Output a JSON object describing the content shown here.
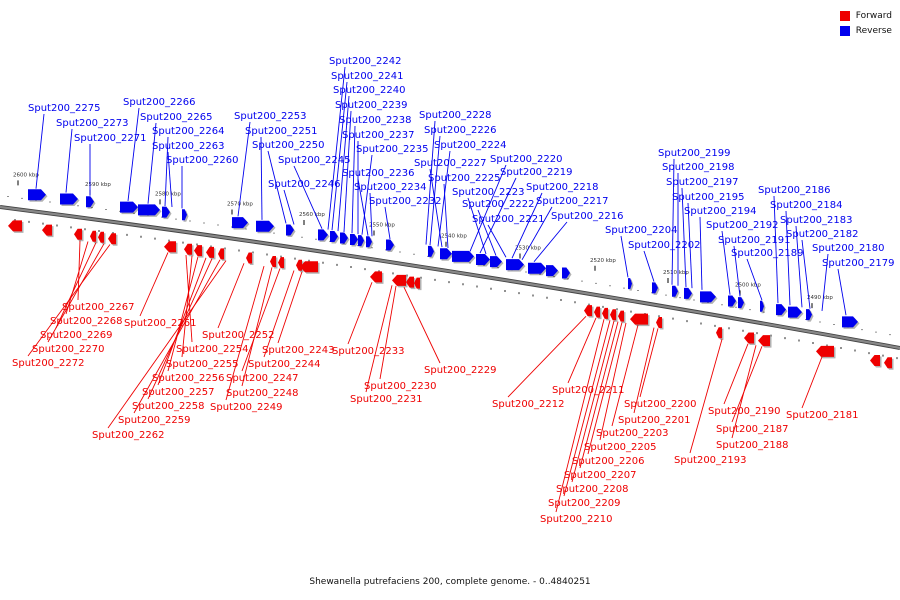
{
  "colors": {
    "forward": "#ee0000",
    "reverse": "#0000ee",
    "backbone": "#888888"
  },
  "legend": [
    {
      "label": "Forward",
      "color": "#ee0000"
    },
    {
      "label": "Reverse",
      "color": "#0000ee"
    }
  ],
  "caption": "Shewanella putrefaciens 200, complete genome. - 0..4840251",
  "ticks": [
    "2600 kbp",
    "2590 kbp",
    "2580 kbp",
    "2570 kbp",
    "2560 kbp",
    "2550 kbp",
    "2540 kbp",
    "2530 kbp",
    "2520 kbp",
    "2510 kbp",
    "2500 kbp",
    "2490 kbp"
  ],
  "reverse_labels": [
    "Sput200_2275",
    "Sput200_2273",
    "Sput200_2271",
    "Sput200_2266",
    "Sput200_2265",
    "Sput200_2264",
    "Sput200_2263",
    "Sput200_2260",
    "Sput200_2253",
    "Sput200_2251",
    "Sput200_2250",
    "Sput200_2245",
    "Sput200_2246",
    "Sput200_2242",
    "Sput200_2241",
    "Sput200_2240",
    "Sput200_2239",
    "Sput200_2238",
    "Sput200_2237",
    "Sput200_2235",
    "Sput200_2236",
    "Sput200_2234",
    "Sput200_2232",
    "Sput200_2228",
    "Sput200_2226",
    "Sput200_2224",
    "Sput200_2227",
    "Sput200_2225",
    "Sput200_2220",
    "Sput200_2219",
    "Sput200_2223",
    "Sput200_2222",
    "Sput200_2221",
    "Sput200_2218",
    "Sput200_2217",
    "Sput200_2216",
    "Sput200_2204",
    "Sput200_2202",
    "Sput200_2199",
    "Sput200_2198",
    "Sput200_2197",
    "Sput200_2195",
    "Sput200_2194",
    "Sput200_2192",
    "Sput200_2191",
    "Sput200_2189",
    "Sput200_2186",
    "Sput200_2184",
    "Sput200_2183",
    "Sput200_2182",
    "Sput200_2180",
    "Sput200_2179"
  ],
  "forward_labels": [
    "Sput200_2267",
    "Sput200_2268",
    "Sput200_2269",
    "Sput200_2270",
    "Sput200_2272",
    "Sput200_2261",
    "Sput200_2252",
    "Sput200_2254",
    "Sput200_2255",
    "Sput200_2256",
    "Sput200_2257",
    "Sput200_2258",
    "Sput200_2259",
    "Sput200_2262",
    "Sput200_2243",
    "Sput200_2244",
    "Sput200_2247",
    "Sput200_2248",
    "Sput200_2249",
    "Sput200_2233",
    "Sput200_2229",
    "Sput200_2230",
    "Sput200_2231",
    "Sput200_2212",
    "Sput200_2211",
    "Sput200_2200",
    "Sput200_2201",
    "Sput200_2203",
    "Sput200_2205",
    "Sput200_2206",
    "Sput200_2207",
    "Sput200_2208",
    "Sput200_2209",
    "Sput200_2210",
    "Sput200_2190",
    "Sput200_2187",
    "Sput200_2188",
    "Sput200_2193",
    "Sput200_2181"
  ]
}
